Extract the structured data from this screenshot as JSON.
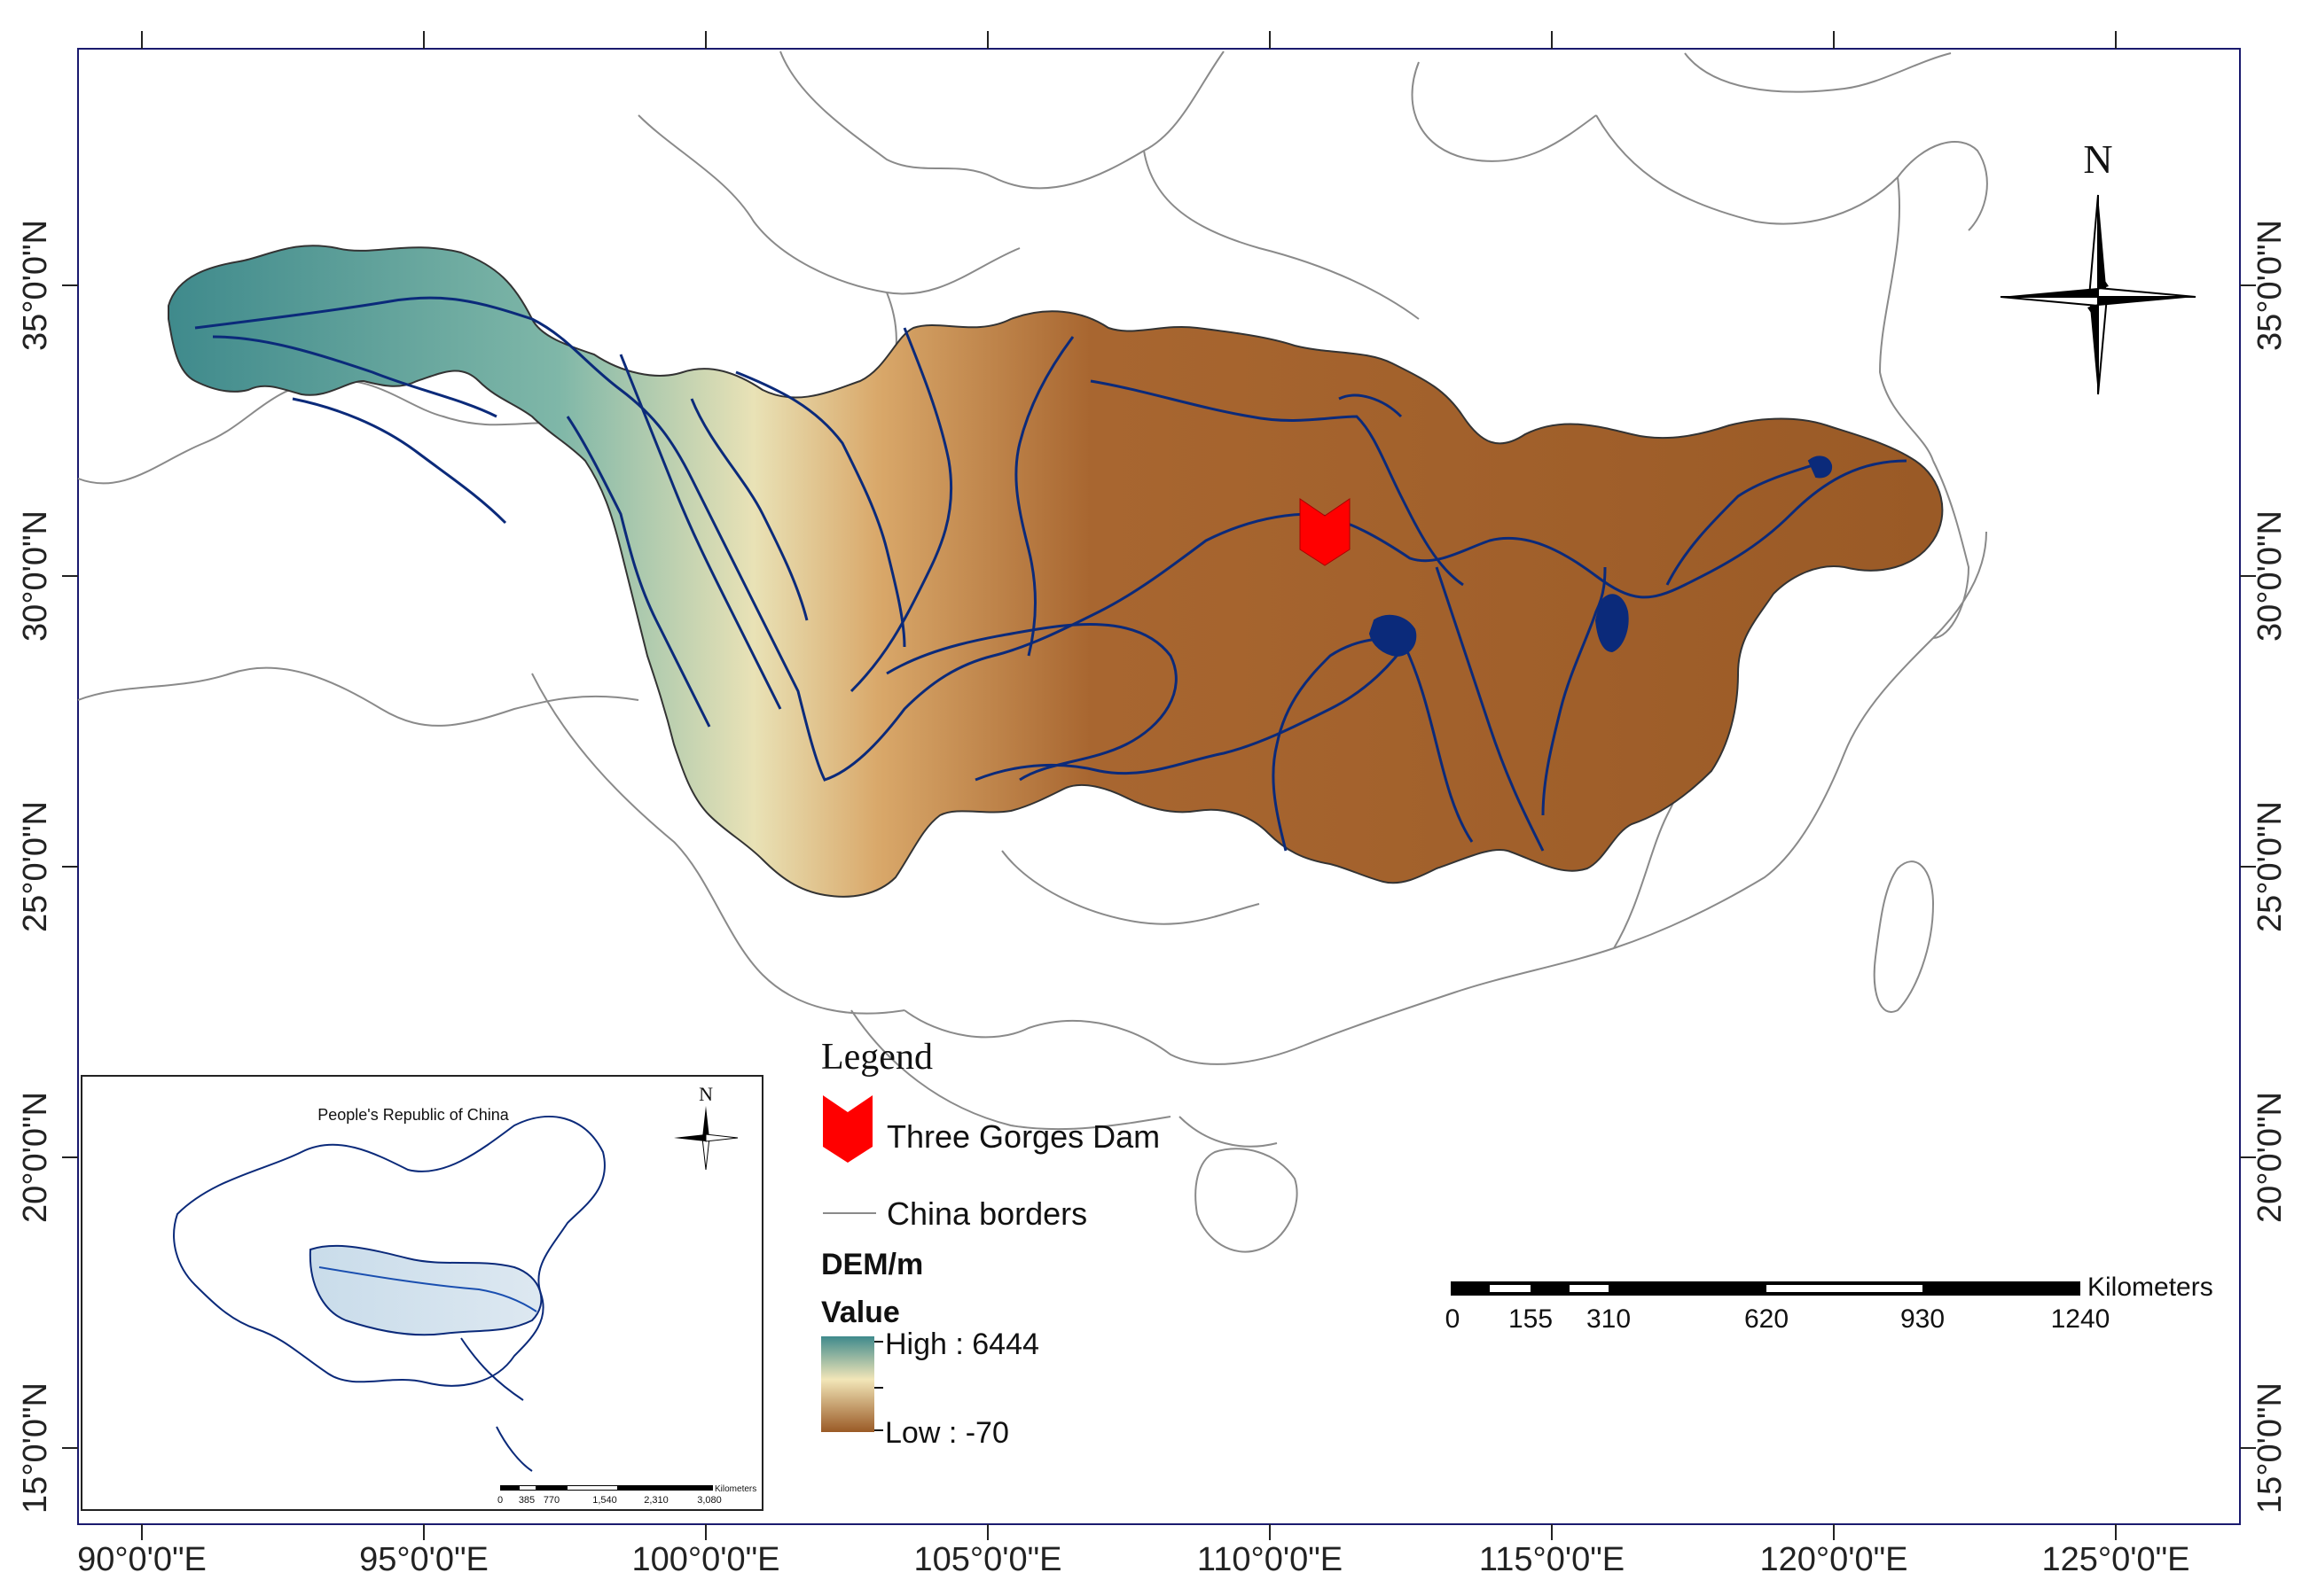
{
  "map": {
    "axes": {
      "lon_labels": [
        "90°0'0\"E",
        "95°0'0\"E",
        "100°0'0\"E",
        "105°0'0\"E",
        "110°0'0\"E",
        "115°0'0\"E",
        "120°0'0\"E",
        "125°0'0\"E"
      ],
      "lat_labels": [
        "35°0'0\"N",
        "30°0'0\"N",
        "25°0'0\"N",
        "20°0'0\"N",
        "15°0'0\"N"
      ]
    },
    "north_arrow": {
      "label": "N"
    },
    "legend": {
      "title": "Legend",
      "dam_label": "Three Gorges Dam",
      "borders_label": "China borders",
      "dem_title": "DEM/m",
      "value_title": "Value",
      "high_label": "High : 6444",
      "low_label": "Low : -70"
    },
    "scale_bar": {
      "unit": "Kilometers",
      "ticks": [
        "0",
        "155",
        "310",
        "620",
        "930",
        "1240"
      ]
    },
    "inset": {
      "title": "People's Republic of China",
      "north_label": "N",
      "scale_ticks": [
        "0",
        "385",
        "770",
        "1,540",
        "2,310",
        "3,080"
      ],
      "scale_unit": "Kilometers"
    },
    "colors": {
      "dem_high": "#3f8a8c",
      "dem_mid": "#f2e6b8",
      "dem_low": "#9a5a26",
      "river": "#0b2a7a",
      "dam": "#ff0000",
      "border": "#8a8a8a",
      "frame": "#1a1a6e"
    }
  }
}
